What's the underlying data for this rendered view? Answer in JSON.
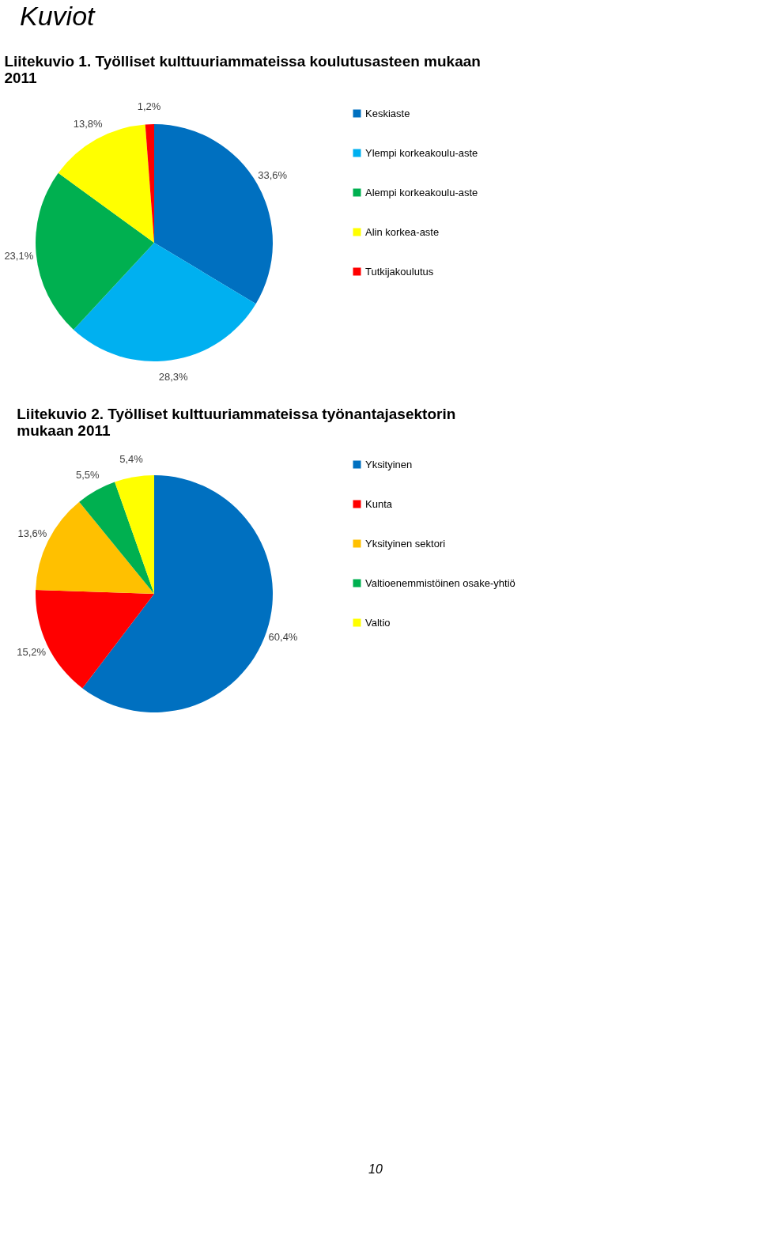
{
  "chart_data": [
    {
      "type": "pie",
      "title": "Liitekuvio 1. Työlliset kulttuuriammateissa koulutusasteen mukaan 2011",
      "annotations": [
        "Kuviot"
      ],
      "legend": "right",
      "categories": [
        "Keskiaste",
        "Ylempi korkeakoulu-aste",
        "Alempi korkeakoulu-aste",
        "Alin korkea-aste",
        "Tutkijakoulutus"
      ],
      "values": [
        33.6,
        28.3,
        23.1,
        13.8,
        1.2
      ],
      "value_labels": [
        "33,6%",
        "28,3%",
        "23,1%",
        "13,8%",
        "1,2%"
      ],
      "colors": [
        "#0070c0",
        "#00b0f0",
        "#00b050",
        "#ffff00",
        "#ff0000"
      ]
    },
    {
      "type": "pie",
      "title": "Liitekuvio 2. Työlliset kulttuuriammateissa työnantajasektorin mukaan 2011",
      "annotations": [
        "10"
      ],
      "legend": "right",
      "categories": [
        "Yksityinen",
        "Kunta",
        "Yksityinen sektori",
        "Valtioenemmistöinen osake-yhtiö",
        "Valtio"
      ],
      "values": [
        60.4,
        15.2,
        13.6,
        5.5,
        5.4
      ],
      "value_labels": [
        "60,4%",
        "15,2%",
        "13,6%",
        "5,5%",
        "5,4%"
      ],
      "colors": [
        "#0070c0",
        "#ff0000",
        "#ffc000",
        "#00b050",
        "#ffff00"
      ]
    }
  ]
}
